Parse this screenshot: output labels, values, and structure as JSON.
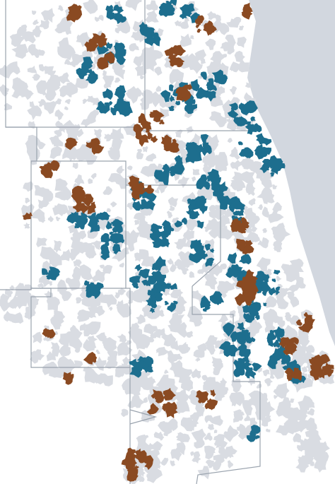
{
  "map": {
    "colors": {
      "background": "#ffffff",
      "land_light": "#d9dce2",
      "lake": "#d2d7df",
      "county_line": "#9aa3ae",
      "teal": "#1d6e8e",
      "brown": "#8a4a22"
    },
    "legend": []
  }
}
